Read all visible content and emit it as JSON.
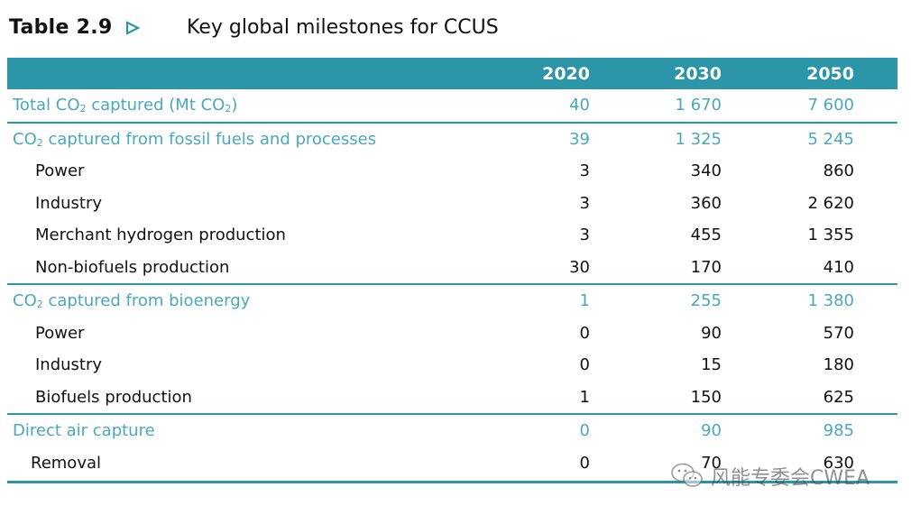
{
  "title": {
    "table_number": "Table 2.9",
    "text": "Key global milestones for CCUS"
  },
  "table": {
    "columns": [
      "2020",
      "2030",
      "2050"
    ],
    "rows": [
      {
        "label_pre": "Total CO",
        "label_sub": "2",
        "label_mid": " captured (Mt CO",
        "label_sub2": "2",
        "label_post": ")",
        "values": [
          "40",
          "1 670",
          "7 600"
        ],
        "kind": "section"
      },
      {
        "label_pre": "CO",
        "label_sub": "2",
        "label_mid": " captured from fossil fuels and processes",
        "values": [
          "39",
          "1 325",
          "5 245"
        ],
        "kind": "section"
      },
      {
        "label": "Power",
        "values": [
          "3",
          "340",
          "860"
        ],
        "kind": "sub"
      },
      {
        "label": "Industry",
        "values": [
          "3",
          "360",
          "2 620"
        ],
        "kind": "sub"
      },
      {
        "label": "Merchant hydrogen production",
        "values": [
          "3",
          "455",
          "1 355"
        ],
        "kind": "sub"
      },
      {
        "label": "Non-biofuels production",
        "values": [
          "30",
          "170",
          "410"
        ],
        "kind": "sub"
      },
      {
        "label_pre": "CO",
        "label_sub": "2",
        "label_mid": " captured from bioenergy",
        "values": [
          "1",
          "255",
          "1 380"
        ],
        "kind": "section"
      },
      {
        "label": "Power",
        "values": [
          "0",
          "90",
          "570"
        ],
        "kind": "sub"
      },
      {
        "label": "Industry",
        "values": [
          "0",
          "15",
          "180"
        ],
        "kind": "sub"
      },
      {
        "label": "Biofuels production",
        "values": [
          "1",
          "150",
          "625"
        ],
        "kind": "sub"
      },
      {
        "label": "Direct air capture",
        "values": [
          "0",
          "90",
          "985"
        ],
        "kind": "section"
      },
      {
        "label": "Removal",
        "values": [
          "0",
          "70",
          "630"
        ],
        "kind": "sub"
      }
    ]
  },
  "watermark": {
    "text": "风能专委会CWEA",
    "icon": "wechat-icon"
  },
  "colors": {
    "header_bg": "#2a96a8",
    "section_text": "#4aa8bc"
  }
}
